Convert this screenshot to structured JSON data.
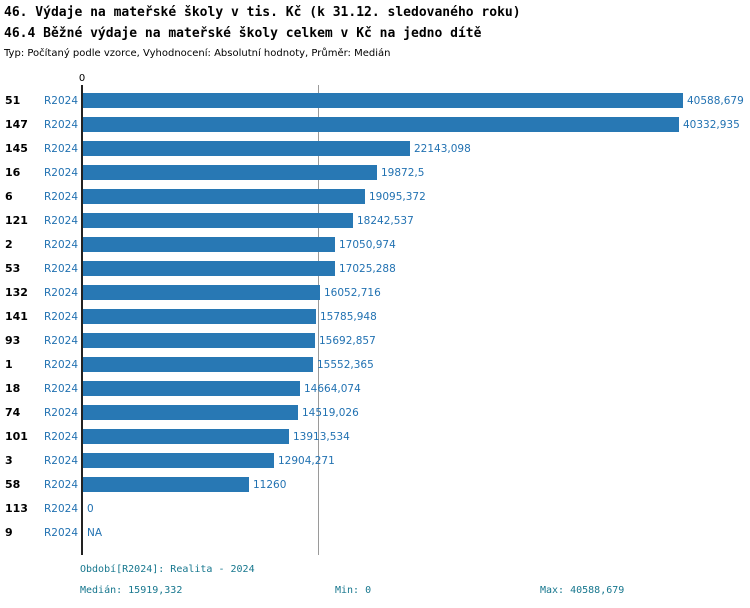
{
  "title": "46. Výdaje na mateřské školy v tis. Kč (k 31.12. sledovaného roku)",
  "subtitle": "46.4 Běžné výdaje na mateřské školy celkem v Kč na jedno dítě",
  "meta": "Typ: Počítaný podle vzorce, Vyhodnocení: Absolutní hodnoty, Průměr: Medián",
  "axis": {
    "zero_label": "0"
  },
  "chart_data": {
    "type": "bar",
    "orientation": "horizontal",
    "period": "R2024",
    "categories": [
      "51",
      "147",
      "145",
      "16",
      "6",
      "121",
      "2",
      "53",
      "132",
      "141",
      "93",
      "1",
      "18",
      "74",
      "101",
      "3",
      "58",
      "113",
      "9"
    ],
    "values": [
      40588.679,
      40332.935,
      22143.098,
      19872.5,
      19095.372,
      18242.537,
      17050.974,
      17025.288,
      16052.716,
      15785.948,
      15692.857,
      15552.365,
      14664.074,
      14519.026,
      13913.534,
      12904.271,
      11260,
      0,
      null
    ],
    "value_labels": [
      "40588,679",
      "40332,935",
      "22143,098",
      "19872,5",
      "19095,372",
      "18242,537",
      "17050,974",
      "17025,288",
      "16052,716",
      "15785,948",
      "15692,857",
      "15552,365",
      "14664,074",
      "14519,026",
      "13913,534",
      "12904,271",
      "11260",
      "0",
      "NA"
    ],
    "xlim": [
      0,
      40588.679
    ],
    "median": 15919.332,
    "bar_color": "#2878b4",
    "grid": "median-line-only",
    "legend": "none"
  },
  "footer": {
    "period_label": "Období[R2024]: Realita - 2024",
    "median_label": "Medián: 15919,332",
    "min_label": "Min: 0",
    "max_label": "Max: 40588,679"
  }
}
